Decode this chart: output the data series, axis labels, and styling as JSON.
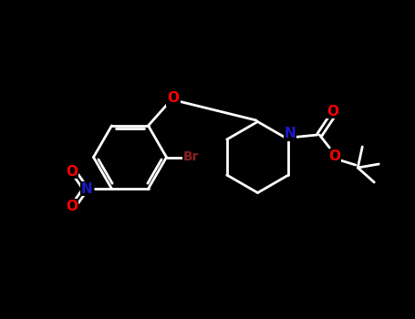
{
  "background_color": "#000000",
  "bond_color": "#ffffff",
  "O_color": "#ff0000",
  "N_color": "#1a1acd",
  "Br_color": "#8b2020",
  "figsize": [
    4.55,
    3.5
  ],
  "dpi": 100,
  "xlim": [
    0,
    9.1
  ],
  "ylim": [
    0,
    7.0
  ]
}
